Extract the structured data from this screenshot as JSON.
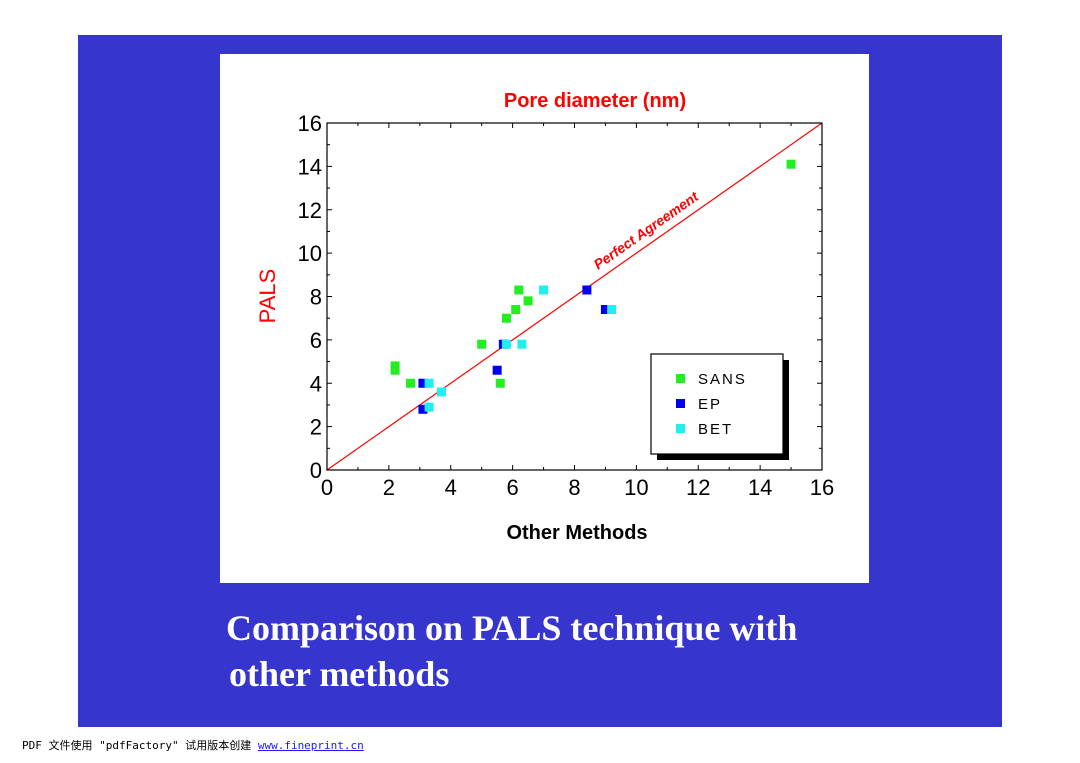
{
  "chart_data": {
    "type": "scatter",
    "title": "Pore diameter (nm)",
    "xlabel": "Other Methods",
    "ylabel": "PALS",
    "xlim": [
      0,
      16
    ],
    "ylim": [
      0,
      16
    ],
    "xticks": [
      "0",
      "2",
      "4",
      "6",
      "8",
      "10",
      "12",
      "14",
      "16"
    ],
    "yticks": [
      "0",
      "2",
      "4",
      "6",
      "8",
      "10",
      "12",
      "14",
      "16"
    ],
    "grid": false,
    "legend_position": "bottom-right",
    "reference_line": {
      "label": "Perfect Agreement",
      "from": [
        0,
        0
      ],
      "to": [
        16,
        16
      ],
      "color": "#ff0000"
    },
    "series": [
      {
        "name": "SANS",
        "color": "#22ee22",
        "x": [
          2.2,
          2.2,
          2.7,
          5.0,
          5.6,
          5.8,
          6.1,
          6.2,
          6.5,
          15.0
        ],
        "y": [
          4.6,
          4.8,
          4.0,
          5.8,
          4.0,
          7.0,
          7.4,
          8.3,
          7.8,
          14.1
        ]
      },
      {
        "name": "EP",
        "color": "#0000ee",
        "x": [
          3.1,
          3.1,
          5.5,
          5.7,
          8.4,
          9.0
        ],
        "y": [
          4.0,
          2.8,
          4.6,
          5.8,
          8.3,
          7.4
        ]
      },
      {
        "name": "BET",
        "color": "#22eeee",
        "x": [
          3.3,
          3.3,
          3.7,
          5.8,
          6.3,
          7.0,
          9.2
        ],
        "y": [
          4.0,
          2.9,
          3.6,
          5.8,
          5.8,
          8.3,
          7.4
        ]
      }
    ]
  },
  "caption": {
    "line1": "Comparison on PALS technique with",
    "line2": "other methods"
  },
  "footer": {
    "text": "PDF 文件使用 \"pdfFactory\" 试用版本创建 ",
    "link": "www.fineprint.cn"
  }
}
